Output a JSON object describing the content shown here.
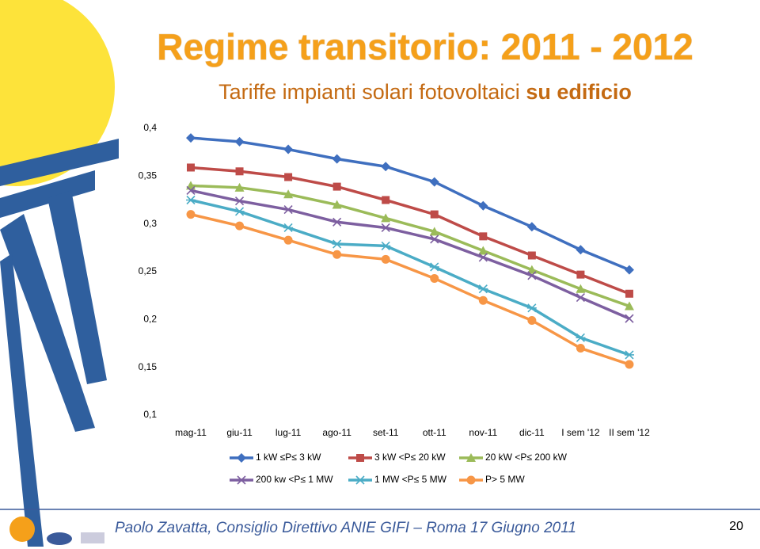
{
  "chart_data": {
    "type": "line",
    "title": "Regime transitorio: 2011 - 2012",
    "subtitle": "Tariffe impianti solari fotovoltaici",
    "subtitle_bold": "su edificio",
    "categories": [
      "mag-11",
      "giu-11",
      "lug-11",
      "ago-11",
      "set-11",
      "ott-11",
      "nov-11",
      "dic-11",
      "I sem '12",
      "II sem '12"
    ],
    "ylim": [
      0.1,
      0.4
    ],
    "yticks": [
      {
        "value": 0.1,
        "label": "0,1"
      },
      {
        "value": 0.15,
        "label": "0,15"
      },
      {
        "value": 0.2,
        "label": "0,2"
      },
      {
        "value": 0.25,
        "label": "0,25"
      },
      {
        "value": 0.3,
        "label": "0,3"
      },
      {
        "value": 0.35,
        "label": "0,35"
      },
      {
        "value": 0.4,
        "label": "0,4"
      }
    ],
    "grid": false,
    "series": [
      {
        "name": "1 kW ≤P≤ 3 kW",
        "color": "#3f6fbf",
        "marker": "diamond",
        "values": [
          0.39,
          0.386,
          0.378,
          0.368,
          0.36,
          0.344,
          0.319,
          0.297,
          0.273,
          0.252
        ]
      },
      {
        "name": "3 kW <P≤ 20 kW",
        "color": "#be4b48",
        "marker": "square",
        "values": [
          0.359,
          0.355,
          0.349,
          0.339,
          0.325,
          0.31,
          0.287,
          0.267,
          0.247,
          0.227
        ]
      },
      {
        "name": "20 kW <P≤ 200 kW",
        "color": "#9bbb59",
        "marker": "triangle",
        "values": [
          0.34,
          0.338,
          0.331,
          0.32,
          0.306,
          0.292,
          0.272,
          0.252,
          0.232,
          0.214
        ]
      },
      {
        "name": "200 kw <P≤ 1 MW",
        "color": "#7d5fa0",
        "marker": "x",
        "values": [
          0.335,
          0.324,
          0.315,
          0.302,
          0.296,
          0.284,
          0.265,
          0.246,
          0.223,
          0.201
        ]
      },
      {
        "name": "1 MW <P≤ 5 MW",
        "color": "#4bacc6",
        "marker": "star",
        "values": [
          0.325,
          0.313,
          0.296,
          0.279,
          0.277,
          0.255,
          0.232,
          0.212,
          0.181,
          0.163
        ]
      },
      {
        "name": "P> 5 MW",
        "color": "#f79646",
        "marker": "circle",
        "values": [
          0.31,
          0.298,
          0.283,
          0.268,
          0.263,
          0.243,
          0.22,
          0.199,
          0.17,
          0.153
        ]
      }
    ]
  },
  "footer": "Paolo Zavatta, Consiglio Direttivo ANIE GIFI – Roma 17 Giugno 2011",
  "page_number": "20"
}
